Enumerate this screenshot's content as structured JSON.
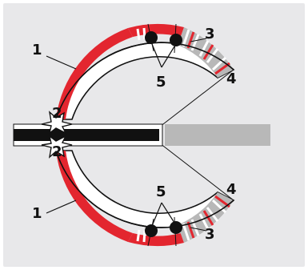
{
  "labels": {
    "top_left": "1",
    "top_left_inner": "2",
    "top_right": "3",
    "top_far_right": "4",
    "top_mid": "5",
    "bottom_left": "1",
    "bottom_left_inner": "2",
    "bottom_right": "3",
    "bottom_far_right": "4",
    "bottom_mid": "5"
  },
  "colors": {
    "background": "#e8e8ea",
    "panel_border": "#ffffff",
    "red": "#e3262f",
    "grey": "#b8b8b8",
    "black": "#111111",
    "white": "#ffffff"
  }
}
